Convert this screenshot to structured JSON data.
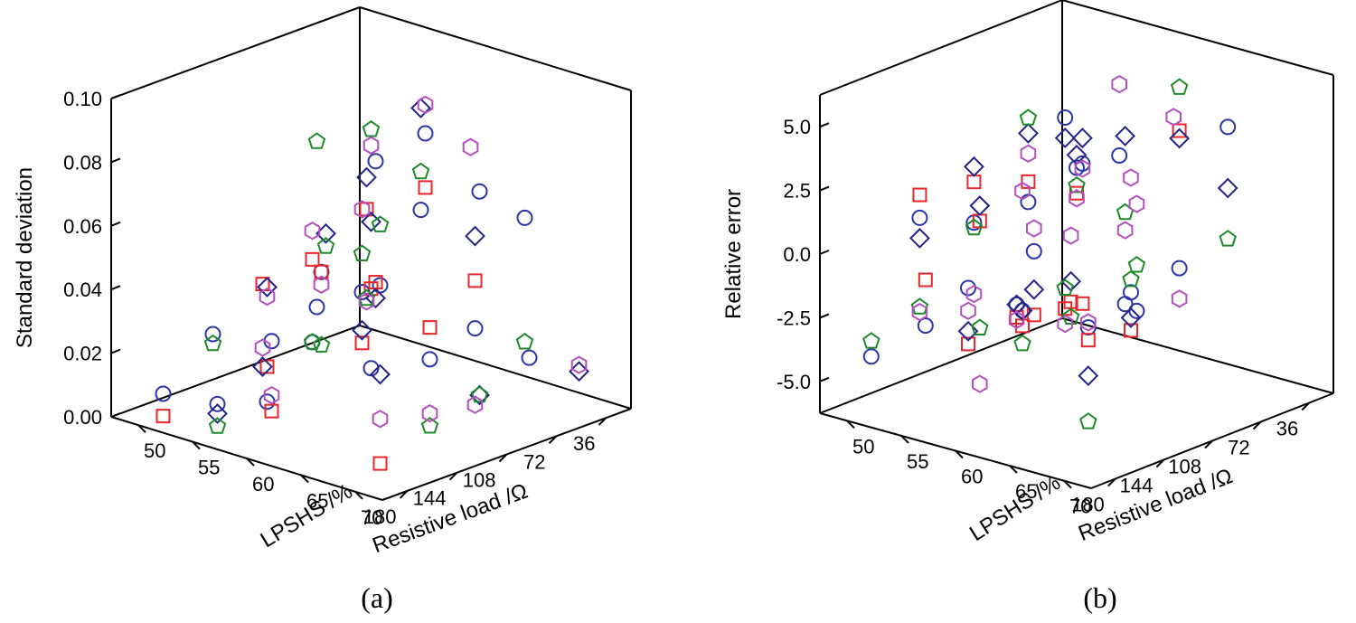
{
  "chart_data": [
    {
      "type": "scatter",
      "panel_label": "(a)",
      "xlabel": "Resistive load /Ω",
      "ylabel": "LPSHS /%",
      "zlabel": "Standard deviation",
      "x_ticks": [
        "36",
        "72",
        "108",
        "144",
        "180"
      ],
      "y_ticks": [
        "50",
        "55",
        "60",
        "65",
        "70"
      ],
      "z_ticks": [
        "0.00",
        "0.02",
        "0.04",
        "0.06",
        "0.08",
        "0.10"
      ],
      "xlim": [
        18,
        198
      ],
      "ylim": [
        47.5,
        72.5
      ],
      "zlim": [
        0,
        0.1
      ],
      "grid": false,
      "marker_colors": {
        "circle": "#2b35a8",
        "square": "#e8262a",
        "diamond": "#23238a",
        "pentagon": "#1f8a2a",
        "hexagon": "#b44fc0"
      },
      "series": [
        {
          "marker": "circle",
          "points": [
            [
              36,
              50,
              0.016
            ],
            [
              36,
              65,
              0.055
            ],
            [
              72,
              50,
              0.006
            ],
            [
              72,
              60,
              0.058
            ],
            [
              108,
              55,
              0.028
            ],
            [
              108,
              65,
              0.093
            ],
            [
              108,
              70,
              0.08
            ],
            [
              144,
              50,
              0.02
            ],
            [
              144,
              60,
              0.05
            ],
            [
              144,
              65,
              0.09
            ],
            [
              180,
              50,
              0.007
            ],
            [
              180,
              60,
              0.034
            ],
            [
              180,
              70,
              0.062
            ],
            [
              72,
              70,
              0.022
            ],
            [
              144,
              70,
              0.033
            ],
            [
              108,
              60,
              0.014
            ],
            [
              144,
              55,
              0.004
            ],
            [
              72,
              65,
              0.026
            ],
            [
              180,
              55,
              0.009
            ]
          ]
        },
        {
          "marker": "square",
          "points": [
            [
              36,
              50,
              0.0
            ],
            [
              72,
              50,
              0.032
            ],
            [
              72,
              55,
              0.053
            ],
            [
              108,
              50,
              0.03
            ],
            [
              108,
              60,
              0.039
            ],
            [
              108,
              65,
              0.076
            ],
            [
              144,
              60,
              0.05
            ],
            [
              144,
              65,
              0.052
            ],
            [
              144,
              70,
              0.043
            ],
            [
              180,
              60,
              0.012
            ],
            [
              180,
              70,
              0.006
            ],
            [
              72,
              65,
              0.041
            ],
            [
              144,
              55,
              0.015
            ],
            [
              180,
              50,
              0.0
            ]
          ]
        },
        {
          "marker": "diamond",
          "points": [
            [
              36,
              50,
              0.004
            ],
            [
              72,
              60,
              0.09
            ],
            [
              72,
              65,
              0.055
            ],
            [
              108,
              50,
              0.004
            ],
            [
              108,
              60,
              0.06
            ],
            [
              144,
              55,
              0.04
            ],
            [
              144,
              65,
              0.047
            ],
            [
              180,
              55,
              0.006
            ],
            [
              180,
              65,
              0.073
            ],
            [
              36,
              70,
              0.012
            ],
            [
              108,
              70,
              0.016
            ],
            [
              180,
              70,
              0.034
            ],
            [
              72,
              55,
              0.063
            ]
          ]
        },
        {
          "marker": "pentagon",
          "points": [
            [
              36,
              50,
              0.028
            ],
            [
              36,
              65,
              0.016
            ],
            [
              72,
              50,
              0.006
            ],
            [
              72,
              55,
              0.025
            ],
            [
              72,
              60,
              0.07
            ],
            [
              108,
              55,
              0.08
            ],
            [
              108,
              60,
              0.089
            ],
            [
              144,
              50,
              0.017
            ],
            [
              144,
              60,
              0.027
            ],
            [
              180,
              55,
              0.002
            ],
            [
              180,
              65,
              0.069
            ],
            [
              180,
              70,
              0.081
            ],
            [
              144,
              70,
              0.012
            ],
            [
              108,
              70,
              0.016
            ]
          ]
        },
        {
          "marker": "hexagon",
          "points": [
            [
              36,
              50,
              0.042
            ],
            [
              36,
              60,
              0.072
            ],
            [
              72,
              50,
              0.041
            ],
            [
              72,
              55,
              0.024
            ],
            [
              72,
              65,
              0.002
            ],
            [
              108,
              50,
              0.01
            ],
            [
              108,
              65,
              0.102
            ],
            [
              108,
              60,
              0.084
            ],
            [
              144,
              55,
              0.037
            ],
            [
              144,
              60,
              0.046
            ],
            [
              180,
              60,
              0.017
            ],
            [
              180,
              70,
              0.02
            ],
            [
              36,
              70,
              0.014
            ],
            [
              144,
              70,
              0.016
            ]
          ]
        }
      ]
    },
    {
      "type": "scatter",
      "panel_label": "(b)",
      "xlabel": "Resistive load /Ω",
      "ylabel": "LPSHS /%",
      "zlabel": "Relative error",
      "x_ticks": [
        "36",
        "72",
        "108",
        "144",
        "180"
      ],
      "y_ticks": [
        "50",
        "55",
        "60",
        "65",
        "70"
      ],
      "z_ticks": [
        "-5.0",
        "-2.5",
        "0.0",
        "2.5",
        "5.0"
      ],
      "xlim": [
        18,
        198
      ],
      "ylim": [
        47.5,
        72.5
      ],
      "zlim": [
        -6.25,
        6.25
      ],
      "grid": false,
      "marker_colors": {
        "circle": "#2b35a8",
        "square": "#e8262a",
        "diamond": "#23238a",
        "pentagon": "#1f8a2a",
        "hexagon": "#b44fc0"
      },
      "series": [
        {
          "marker": "circle",
          "points": [
            [
              36,
              50,
              2.3
            ],
            [
              36,
              55,
              1.4
            ],
            [
              72,
              50,
              -4.3
            ],
            [
              72,
              60,
              -3.1
            ],
            [
              108,
              50,
              -2.9
            ],
            [
              108,
              60,
              3.0
            ],
            [
              108,
              65,
              -1.3
            ],
            [
              144,
              55,
              1.0
            ],
            [
              144,
              65,
              4.5
            ],
            [
              144,
              70,
              -0.7
            ],
            [
              180,
              55,
              -2.3
            ],
            [
              180,
              65,
              1.8
            ],
            [
              180,
              70,
              -0.6
            ],
            [
              36,
              65,
              3.7
            ],
            [
              72,
              65,
              -1.1
            ],
            [
              144,
              50,
              0.6
            ],
            [
              108,
              55,
              -3.2
            ],
            [
              180,
              50,
              -4.1
            ],
            [
              144,
              60,
              2.4
            ]
          ]
        },
        {
          "marker": "square",
          "points": [
            [
              36,
              50,
              -5.2
            ],
            [
              72,
              50,
              -4.8
            ],
            [
              72,
              55,
              -3.6
            ],
            [
              108,
              50,
              -5.1
            ],
            [
              108,
              60,
              2.0
            ],
            [
              108,
              65,
              -2.8
            ],
            [
              144,
              55,
              2.6
            ],
            [
              144,
              60,
              3.2
            ],
            [
              144,
              65,
              -1.0
            ],
            [
              180,
              55,
              -0.5
            ],
            [
              180,
              65,
              -0.7
            ],
            [
              180,
              70,
              -1.1
            ],
            [
              72,
              65,
              4.3
            ],
            [
              108,
              55,
              -3.8
            ],
            [
              144,
              50,
              1.5
            ],
            [
              180,
              60,
              2.4
            ]
          ]
        },
        {
          "marker": "diamond",
          "points": [
            [
              36,
              50,
              1.5
            ],
            [
              72,
              50,
              -4.3
            ],
            [
              72,
              55,
              -2.8
            ],
            [
              72,
              60,
              3.5
            ],
            [
              108,
              50,
              -4.6
            ],
            [
              108,
              55,
              -3.2
            ],
            [
              108,
              65,
              -2.3
            ],
            [
              144,
              55,
              3.2
            ],
            [
              144,
              60,
              5.1
            ],
            [
              144,
              65,
              5.5
            ],
            [
              180,
              65,
              0.3
            ],
            [
              180,
              70,
              -2.5
            ],
            [
              36,
              65,
              1.3
            ],
            [
              72,
              65,
              4.0
            ],
            [
              144,
              50,
              -0.2
            ],
            [
              180,
              60,
              3.0
            ],
            [
              108,
              60,
              3.5
            ]
          ]
        },
        {
          "marker": "pentagon",
          "points": [
            [
              36,
              50,
              -4.4
            ],
            [
              36,
              65,
              -0.7
            ],
            [
              72,
              55,
              -4.2
            ],
            [
              72,
              60,
              0.5
            ],
            [
              72,
              65,
              6.0
            ],
            [
              108,
              55,
              -4.5
            ],
            [
              108,
              60,
              2.3
            ],
            [
              108,
              65,
              -0.8
            ],
            [
              144,
              55,
              0.8
            ],
            [
              144,
              60,
              5.7
            ],
            [
              180,
              60,
              -1.8
            ],
            [
              180,
              70,
              -4.3
            ],
            [
              144,
              70,
              1.1
            ],
            [
              180,
              50,
              -3.5
            ],
            [
              144,
              50,
              -2.9
            ]
          ]
        },
        {
          "marker": "hexagon",
          "points": [
            [
              36,
              50,
              -5.8
            ],
            [
              36,
              55,
              4.2
            ],
            [
              36,
              60,
              3.5
            ],
            [
              72,
              50,
              -4.9
            ],
            [
              72,
              55,
              -1.0
            ],
            [
              72,
              60,
              -0.2
            ],
            [
              108,
              50,
              -3.8
            ],
            [
              108,
              55,
              1.5
            ],
            [
              108,
              65,
              3.2
            ],
            [
              144,
              50,
              -3.1
            ],
            [
              144,
              55,
              -1.8
            ],
            [
              144,
              60,
              4.3
            ],
            [
              144,
              65,
              4.3
            ],
            [
              180,
              60,
              -4.0
            ],
            [
              180,
              65,
              2.7
            ],
            [
              180,
              70,
              -0.4
            ],
            [
              108,
              60,
              1.8
            ],
            [
              144,
              70,
              3.5
            ],
            [
              72,
              65,
              -2.3
            ]
          ]
        }
      ]
    }
  ]
}
